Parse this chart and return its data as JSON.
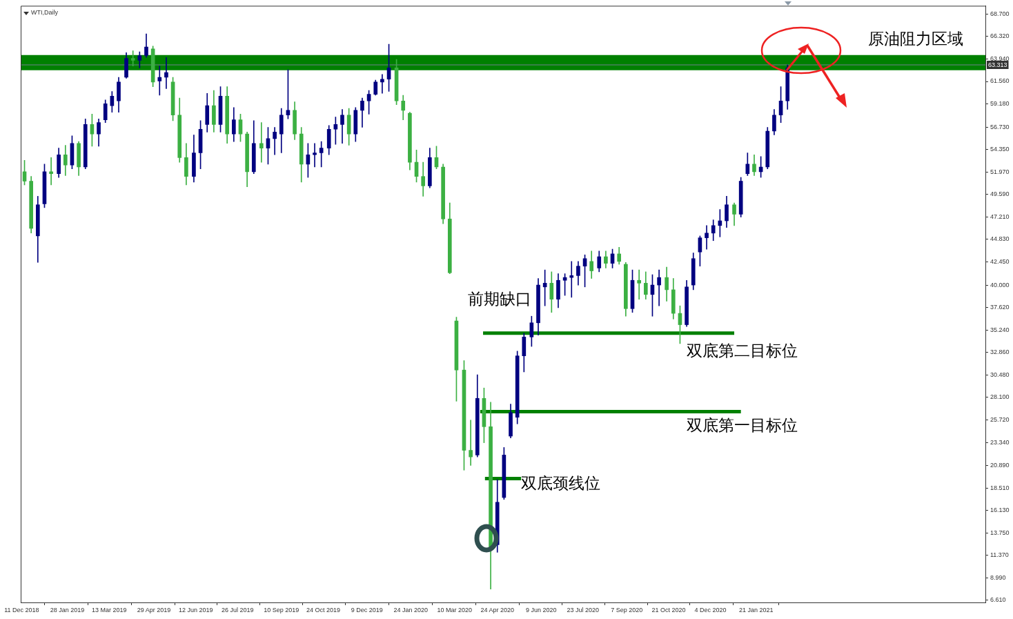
{
  "chart_data": {
    "type": "candlestick",
    "title": "WTI,Daily",
    "x": [
      "2018-12-14",
      "2018-12-21",
      "2018-12-28",
      "2019-01-04",
      "2019-01-11",
      "2019-01-19",
      "2019-01-26",
      "2019-02-02",
      "2019-02-09",
      "2019-02-16",
      "2019-02-23",
      "2019-03-02",
      "2019-03-09",
      "2019-03-16",
      "2019-03-23",
      "2019-03-31",
      "2019-04-07",
      "2019-04-14",
      "2019-04-21",
      "2019-04-28",
      "2019-05-05",
      "2019-05-12",
      "2019-05-19",
      "2019-05-26",
      "2019-06-02",
      "2019-06-10",
      "2019-06-17",
      "2019-06-24",
      "2019-07-01",
      "2019-07-08",
      "2019-07-15",
      "2019-07-22",
      "2019-07-29",
      "2019-08-05",
      "2019-08-12",
      "2019-08-20",
      "2019-08-27",
      "2019-09-03",
      "2019-09-10",
      "2019-09-17",
      "2019-09-24",
      "2019-10-01",
      "2019-10-08",
      "2019-10-15",
      "2019-10-22",
      "2019-10-30",
      "2019-11-06",
      "2019-11-13",
      "2019-11-20",
      "2019-11-27",
      "2019-12-04",
      "2019-12-11",
      "2019-12-18",
      "2019-12-25",
      "2020-01-01",
      "2020-01-09",
      "2020-01-16",
      "2020-01-23",
      "2020-01-30",
      "2020-02-06",
      "2020-02-13",
      "2020-02-20",
      "2020-02-27",
      "2020-03-05",
      "2020-03-12",
      "2020-03-20",
      "2020-03-27",
      "2020-04-03",
      "2020-04-10",
      "2020-04-17",
      "2020-04-24",
      "2020-05-01",
      "2020-05-08",
      "2020-05-15",
      "2020-05-22",
      "2020-05-30",
      "2020-06-06",
      "2020-06-13",
      "2020-06-20",
      "2020-06-27",
      "2020-07-04",
      "2020-07-11",
      "2020-07-18",
      "2020-07-25",
      "2020-08-01",
      "2020-08-09",
      "2020-08-16",
      "2020-08-23",
      "2020-08-30",
      "2020-09-06",
      "2020-09-13",
      "2020-09-20",
      "2020-09-27",
      "2020-10-04",
      "2020-10-11",
      "2020-10-19",
      "2020-10-26",
      "2020-11-02",
      "2020-11-09",
      "2020-11-16",
      "2020-11-23",
      "2020-11-30",
      "2020-12-07",
      "2020-12-14",
      "2020-12-21",
      "2020-12-29",
      "2021-01-05",
      "2021-01-12",
      "2021-01-19",
      "2021-01-26",
      "2021-02-02",
      "2021-02-09",
      "2021-02-16",
      "2021-02-23"
    ],
    "ohlc": [
      [
        52.0,
        53.2,
        50.6,
        51.0
      ],
      [
        51.0,
        51.5,
        45.5,
        46.0
      ],
      [
        45.2,
        49.4,
        42.4,
        48.5
      ],
      [
        48.6,
        52.8,
        48.2,
        52.0
      ],
      [
        52.0,
        53.5,
        50.6,
        51.8
      ],
      [
        51.8,
        54.5,
        51.4,
        53.8
      ],
      [
        53.8,
        54.8,
        51.6,
        52.7
      ],
      [
        52.7,
        55.8,
        52.3,
        55.0
      ],
      [
        55.0,
        55.2,
        51.6,
        52.5
      ],
      [
        52.5,
        57.6,
        52.3,
        57.0
      ],
      [
        57.0,
        58.1,
        54.7,
        56.0
      ],
      [
        56.0,
        57.6,
        54.7,
        57.2
      ],
      [
        57.5,
        59.6,
        57.2,
        59.2
      ],
      [
        59.0,
        60.5,
        58.3,
        60.0
      ],
      [
        59.5,
        62.0,
        58.3,
        61.5
      ],
      [
        62.0,
        64.6,
        61.9,
        64.0
      ],
      [
        64.0,
        64.8,
        63.2,
        63.8
      ],
      [
        63.8,
        64.7,
        63.0,
        64.3
      ],
      [
        64.3,
        66.6,
        64.1,
        65.2
      ],
      [
        65.0,
        65.3,
        61.0,
        61.5
      ],
      [
        61.6,
        63.2,
        60.1,
        62.0
      ],
      [
        62.0,
        64.1,
        60.8,
        62.5
      ],
      [
        61.5,
        62.0,
        57.4,
        58.0
      ],
      [
        58.0,
        59.8,
        53.0,
        53.5
      ],
      [
        53.5,
        55.0,
        50.6,
        51.5
      ],
      [
        51.5,
        55.9,
        50.9,
        54.0
      ],
      [
        54.0,
        57.4,
        52.3,
        56.5
      ],
      [
        57.0,
        60.3,
        56.2,
        59.0
      ],
      [
        59.0,
        60.6,
        56.2,
        57.0
      ],
      [
        57.0,
        61.0,
        56.2,
        60.0
      ],
      [
        60.0,
        61.0,
        55.0,
        56.0
      ],
      [
        56.0,
        58.8,
        55.2,
        57.5
      ],
      [
        57.5,
        58.1,
        55.2,
        56.0
      ],
      [
        56.0,
        56.2,
        50.4,
        52.0
      ],
      [
        52.0,
        57.4,
        51.8,
        55.0
      ],
      [
        55.0,
        57.2,
        53.0,
        54.5
      ],
      [
        54.5,
        56.7,
        52.8,
        55.5
      ],
      [
        55.5,
        56.7,
        53.8,
        56.2
      ],
      [
        56.0,
        58.7,
        54.0,
        58.0
      ],
      [
        58.0,
        62.8,
        57.6,
        58.5
      ],
      [
        58.5,
        59.4,
        55.4,
        56.0
      ],
      [
        56.0,
        56.7,
        50.9,
        52.8
      ],
      [
        52.8,
        55.0,
        51.4,
        53.8
      ],
      [
        53.8,
        55.0,
        52.5,
        54.0
      ],
      [
        54.0,
        55.2,
        52.5,
        54.5
      ],
      [
        54.5,
        56.9,
        53.8,
        56.5
      ],
      [
        56.5,
        57.8,
        54.9,
        57.0
      ],
      [
        57.0,
        58.6,
        55.0,
        58.0
      ],
      [
        58.0,
        58.7,
        54.8,
        56.0
      ],
      [
        56.0,
        58.8,
        55.2,
        58.5
      ],
      [
        58.5,
        59.8,
        56.7,
        59.5
      ],
      [
        59.5,
        60.6,
        58.1,
        60.2
      ],
      [
        60.2,
        61.7,
        60.1,
        61.5
      ],
      [
        61.5,
        62.3,
        60.3,
        61.8
      ],
      [
        61.8,
        65.5,
        60.5,
        63.0
      ],
      [
        63.0,
        63.9,
        59.1,
        59.5
      ],
      [
        59.5,
        60.1,
        57.5,
        58.5
      ],
      [
        58.2,
        58.3,
        52.2,
        53.0
      ],
      [
        53.0,
        54.3,
        50.9,
        51.5
      ],
      [
        51.5,
        53.0,
        49.4,
        50.5
      ],
      [
        50.5,
        54.5,
        50.3,
        53.5
      ],
      [
        53.5,
        54.7,
        52.3,
        52.5
      ],
      [
        52.5,
        52.8,
        46.5,
        47.0
      ],
      [
        47.0,
        48.7,
        41.2,
        41.3
      ],
      [
        36.2,
        36.6,
        27.7,
        31.0
      ],
      [
        31.0,
        32.0,
        20.4,
        22.5
      ],
      [
        22.5,
        25.7,
        20.9,
        21.8
      ],
      [
        22.0,
        30.5,
        21.8,
        28.0
      ],
      [
        28.0,
        29.1,
        23.3,
        25.0
      ],
      [
        25.0,
        27.6,
        7.8,
        12.0
      ],
      [
        12.5,
        19.4,
        11.7,
        17.0
      ],
      [
        17.5,
        22.8,
        17.3,
        22.0
      ],
      [
        24.0,
        27.4,
        23.8,
        26.5
      ],
      [
        26.0,
        33.0,
        25.3,
        32.5
      ],
      [
        32.5,
        34.9,
        30.8,
        34.5
      ],
      [
        34.5,
        36.7,
        33.5,
        36.0
      ],
      [
        36.0,
        40.7,
        34.7,
        40.0
      ],
      [
        39.8,
        41.6,
        37.8,
        40.2
      ],
      [
        40.2,
        41.4,
        37.1,
        38.5
      ],
      [
        38.5,
        41.2,
        37.6,
        40.5
      ],
      [
        40.5,
        41.2,
        38.9,
        40.8
      ],
      [
        40.8,
        42.5,
        38.7,
        41.0
      ],
      [
        41.0,
        42.5,
        40.0,
        42.0
      ],
      [
        42.0,
        43.2,
        39.8,
        42.8
      ],
      [
        42.5,
        43.6,
        40.7,
        41.5
      ],
      [
        41.8,
        43.6,
        41.4,
        43.0
      ],
      [
        43.0,
        43.6,
        41.8,
        42.3
      ],
      [
        42.3,
        43.8,
        41.8,
        43.3
      ],
      [
        43.3,
        44.0,
        42.2,
        42.5
      ],
      [
        42.2,
        42.4,
        36.7,
        37.5
      ],
      [
        37.5,
        41.6,
        37.1,
        40.5
      ],
      [
        40.5,
        41.6,
        38.5,
        40.2
      ],
      [
        40.2,
        41.4,
        38.5,
        39.0
      ],
      [
        39.0,
        41.1,
        36.7,
        40.0
      ],
      [
        40.0,
        41.6,
        37.8,
        40.8
      ],
      [
        40.8,
        41.9,
        38.3,
        39.5
      ],
      [
        39.5,
        40.7,
        36.4,
        37.0
      ],
      [
        37.0,
        37.8,
        33.8,
        35.8
      ],
      [
        35.8,
        40.5,
        35.6,
        39.8
      ],
      [
        40.0,
        43.4,
        39.5,
        42.8
      ],
      [
        43.5,
        45.2,
        42.0,
        45.0
      ],
      [
        45.0,
        46.3,
        43.8,
        45.5
      ],
      [
        45.5,
        46.9,
        44.7,
        46.3
      ],
      [
        46.3,
        48.0,
        45.1,
        46.8
      ],
      [
        46.8,
        49.4,
        46.1,
        48.5
      ],
      [
        48.5,
        48.7,
        46.3,
        47.5
      ],
      [
        47.5,
        51.4,
        47.2,
        51.0
      ],
      [
        51.8,
        54.0,
        51.6,
        52.8
      ],
      [
        52.8,
        53.8,
        51.6,
        52.0
      ],
      [
        52.0,
        53.6,
        51.4,
        52.5
      ],
      [
        52.5,
        56.7,
        52.3,
        56.3
      ],
      [
        56.3,
        58.6,
        55.9,
        58.0
      ],
      [
        58.0,
        61.0,
        57.2,
        59.5
      ],
      [
        59.5,
        63.3,
        58.6,
        63.0
      ]
    ],
    "series": [
      {
        "type": "line",
        "x": [
          "2020-04-09",
          "2020-12-29"
        ],
        "values": [
          34.9,
          34.9
        ],
        "color": "#008000"
      },
      {
        "type": "line",
        "x": [
          "2020-04-06",
          "2021-01-05"
        ],
        "values": [
          26.6,
          26.6
        ],
        "color": "#008000"
      },
      {
        "type": "line",
        "x": [
          "2020-04-11",
          "2020-05-19"
        ],
        "values": [
          19.5,
          19.5
        ],
        "color": "#008000"
      }
    ],
    "xlim": [
      "2018-12-10",
      "2021-09-19"
    ],
    "xticks": [
      {
        "value": "2018-12-11",
        "label": "11 Dec 2018"
      },
      {
        "value": "2019-01-28",
        "label": "28 Jan 2019"
      },
      {
        "value": "2019-03-13",
        "label": "13 Mar 2019"
      },
      {
        "value": "2019-04-29",
        "label": "29 Apr 2019"
      },
      {
        "value": "2019-06-12",
        "label": "12 Jun 2019"
      },
      {
        "value": "2019-07-26",
        "label": "26 Jul 2019"
      },
      {
        "value": "2019-09-10",
        "label": "10 Sep 2019"
      },
      {
        "value": "2019-10-24",
        "label": "24 Oct 2019"
      },
      {
        "value": "2019-12-09",
        "label": "9 Dec 2019"
      },
      {
        "value": "2020-01-24",
        "label": "24 Jan 2020"
      },
      {
        "value": "2020-03-10",
        "label": "10 Mar 2020"
      },
      {
        "value": "2020-04-24",
        "label": "24 Apr 2020"
      },
      {
        "value": "2020-06-09",
        "label": "9 Jun 2020"
      },
      {
        "value": "2020-07-23",
        "label": "23 Jul 2020"
      },
      {
        "value": "2020-09-07",
        "label": "7 Sep 2020"
      },
      {
        "value": "2020-10-21",
        "label": "21 Oct 2020"
      },
      {
        "value": "2020-12-04",
        "label": "4 Dec 2020"
      },
      {
        "value": "2021-01-21",
        "label": "21 Jan 2021"
      }
    ],
    "ylim": [
      6.39,
      69.57
    ],
    "yticks": [
      {
        "value": 6.61,
        "label": "6.610"
      },
      {
        "value": 8.99,
        "label": "8.990"
      },
      {
        "value": 11.37,
        "label": "11.370"
      },
      {
        "value": 13.75,
        "label": "13.750"
      },
      {
        "value": 16.13,
        "label": "16.130"
      },
      {
        "value": 18.51,
        "label": "18.510"
      },
      {
        "value": 20.89,
        "label": "20.890"
      },
      {
        "value": 23.34,
        "label": "23.340"
      },
      {
        "value": 25.72,
        "label": "25.720"
      },
      {
        "value": 28.1,
        "label": "28.100"
      },
      {
        "value": 30.48,
        "label": "30.480"
      },
      {
        "value": 32.86,
        "label": "32.860"
      },
      {
        "value": 35.24,
        "label": "35.240"
      },
      {
        "value": 37.62,
        "label": "37.620"
      },
      {
        "value": 40,
        "label": "40.000"
      },
      {
        "value": 42.45,
        "label": "42.450"
      },
      {
        "value": 44.83,
        "label": "44.830"
      },
      {
        "value": 47.21,
        "label": "47.210"
      },
      {
        "value": 49.59,
        "label": "49.590"
      },
      {
        "value": 51.97,
        "label": "51.970"
      },
      {
        "value": 54.35,
        "label": "54.350"
      },
      {
        "value": 56.73,
        "label": "56.730"
      },
      {
        "value": 59.18,
        "label": "59.180"
      },
      {
        "value": 61.56,
        "label": "61.560"
      },
      {
        "value": 63.94,
        "label": "63.940"
      },
      {
        "value": 66.32,
        "label": "66.320"
      },
      {
        "value": 68.7,
        "label": "68.700"
      }
    ],
    "bands": [
      {
        "axis": "y",
        "from": 62.75,
        "to": 64.35,
        "color": "#008000"
      }
    ],
    "ref_lines": [
      {
        "axis": "y",
        "value": 63.313,
        "label": "63.313",
        "color": "#708090"
      }
    ],
    "annotations": [
      {
        "text": "原油阻力区域",
        "x": "2021-05-19",
        "y": 64.35
      },
      "前期缺口",
      {
        "text": "双底第二目标位",
        "x": "2020-11-09",
        "y": 34.9
      },
      {
        "text": "双底第一目标位",
        "x": "2020-11-09",
        "y": 26.6
      },
      {
        "text": "双底颈线位",
        "x": "2020-05-19",
        "y": 19.5
      }
    ]
  }
}
